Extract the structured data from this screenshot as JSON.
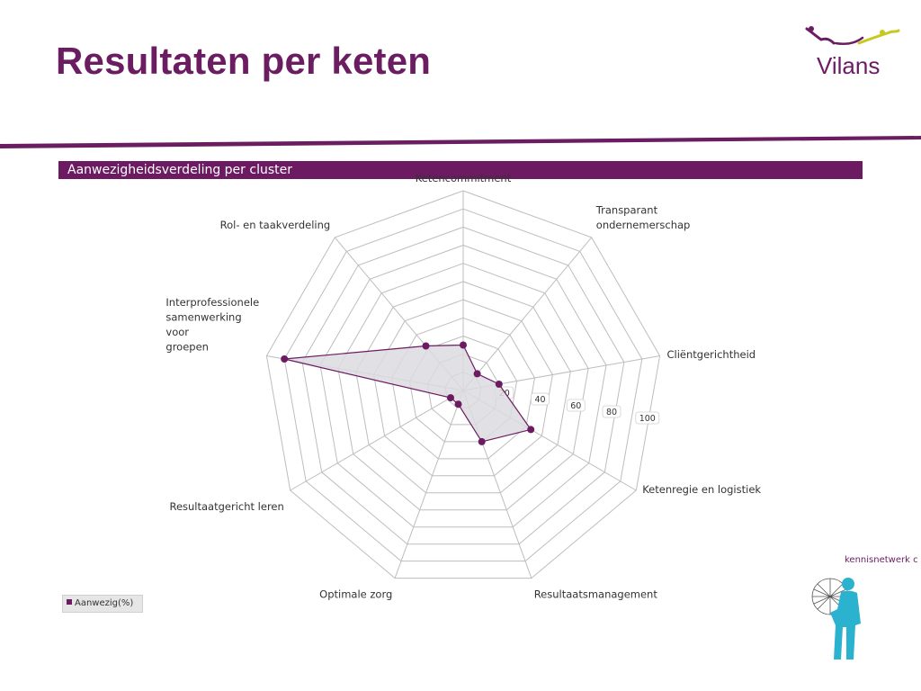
{
  "slide": {
    "title": "Resultaten per keten",
    "logo_text": "Vilans",
    "panel_title": "Aanwezigheidsverdeling per cluster",
    "network_logo_text": "kennisnetwerk cva nederland"
  },
  "colors": {
    "brand": "#6b1d62",
    "series": "#6c1b62",
    "fill": "#dcdadf",
    "grid": "#bdbdbd",
    "logo_accent": "#c8c81e",
    "network": "#2ab2cf"
  },
  "chart_data": {
    "type": "radar",
    "title": "Aanwezigheidsverdeling per cluster",
    "categories": [
      "Ketencommitment",
      "Transparant ondernemerschap",
      "Cliëntgerichtheid",
      "Ketenregie en logistiek",
      "Resultaatsmanagement",
      "Optimale zorg",
      "Resultaatgericht leren",
      "Interprofessionele samenwerking voor groepen",
      "Rol- en taakverdeling"
    ],
    "category_label_lines": [
      [
        "Ketencommitment"
      ],
      [
        "Transparant",
        "ondernemerschap"
      ],
      [
        "Cliëntgerichtheid"
      ],
      [
        "Ketenregie en logistiek"
      ],
      [
        "Resultaatsmanagement"
      ],
      [
        "Optimale zorg"
      ],
      [
        "Resultaatgericht leren"
      ],
      [
        "Interprofessionele",
        "samenwerking",
        "voor",
        "groepen"
      ],
      [
        "Rol- en taakverdeling"
      ]
    ],
    "series": [
      {
        "name": "Aanwezig(%)",
        "values": [
          25,
          12,
          20,
          43,
          30,
          8,
          8,
          100,
          32
        ]
      }
    ],
    "rlim": [
      0,
      110
    ],
    "ticks": [
      20,
      40,
      60,
      80,
      100
    ],
    "grid": true,
    "legend_position": "bottom-left"
  }
}
